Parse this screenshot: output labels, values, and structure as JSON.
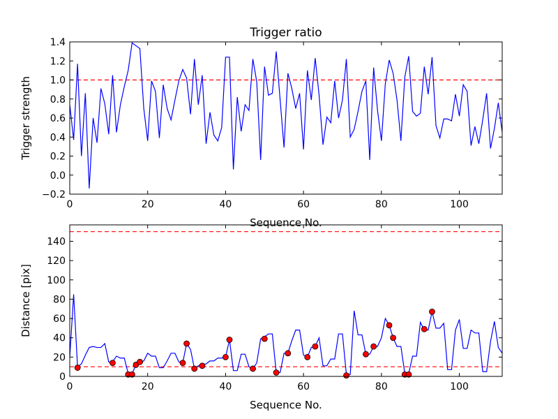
{
  "chart_data": [
    {
      "type": "line",
      "title": "Trigger ratio",
      "xlabel": "Sequence No.",
      "ylabel": "Trigger strength",
      "xlim": [
        0,
        111
      ],
      "ylim": [
        -0.2,
        1.4
      ],
      "xticks": [
        0,
        20,
        40,
        60,
        80,
        100
      ],
      "yticks": [
        -0.2,
        0.0,
        0.2,
        0.4,
        0.6,
        0.8,
        1.0,
        1.2,
        1.4
      ],
      "xtick_labels": [
        "0",
        "20",
        "40",
        "60",
        "80",
        "100"
      ],
      "ytick_labels": [
        "−0.2",
        "0.0",
        "0.2",
        "0.4",
        "0.6",
        "0.8",
        "1.0",
        "1.2",
        "1.4"
      ],
      "grid": false,
      "series": [
        {
          "color": "#0000ff",
          "style": "solid",
          "values": [
            0.74,
            0.37,
            1.17,
            0.2,
            0.86,
            -0.14,
            0.6,
            0.34,
            0.91,
            0.75,
            0.43,
            1.05,
            0.45,
            0.74,
            0.93,
            1.1,
            1.39,
            1.36,
            1.33,
            0.7,
            0.36,
            0.99,
            0.88,
            0.39,
            0.95,
            0.7,
            0.58,
            0.79,
            0.99,
            1.11,
            1.02,
            0.64,
            1.22,
            0.74,
            1.05,
            0.33,
            0.66,
            0.42,
            0.36,
            0.5,
            1.24,
            1.24,
            0.06,
            0.82,
            0.46,
            0.74,
            0.68,
            1.22,
            0.98,
            0.16,
            1.14,
            0.84,
            0.86,
            1.3,
            0.79,
            0.29,
            1.07,
            0.91,
            0.7,
            0.86,
            0.27,
            1.1,
            0.79,
            1.23,
            0.84,
            0.32,
            0.61,
            0.55,
            0.99,
            0.6,
            0.79,
            1.22,
            0.4,
            0.48,
            0.67,
            0.88,
            0.99,
            0.16,
            1.13,
            0.68,
            0.36,
            0.96,
            1.21,
            1.07,
            0.79,
            0.36,
            1.03,
            1.25,
            0.67,
            0.62,
            0.65,
            1.14,
            0.85,
            1.24,
            0.52,
            0.39,
            0.59,
            0.59,
            0.57,
            0.85,
            0.62,
            0.95,
            0.88,
            0.31,
            0.51,
            0.33,
            0.58,
            0.86,
            0.28,
            0.49,
            0.76,
            0.45
          ]
        }
      ],
      "hlines": [
        {
          "y": 1.0,
          "color": "#ff0000",
          "style": "dashed"
        }
      ]
    },
    {
      "type": "line",
      "title": "",
      "xlabel": "Sequence No.",
      "ylabel": "Distance [pix]",
      "xlim": [
        0,
        111
      ],
      "ylim": [
        0,
        157
      ],
      "xticks": [
        0,
        20,
        40,
        60,
        80,
        100
      ],
      "yticks": [
        0,
        20,
        40,
        60,
        80,
        100,
        120,
        140
      ],
      "xtick_labels": [
        "0",
        "20",
        "40",
        "60",
        "80",
        "100"
      ],
      "ytick_labels": [
        "0",
        "20",
        "40",
        "60",
        "80",
        "100",
        "120",
        "140"
      ],
      "grid": false,
      "series": [
        {
          "color": "#0000ff",
          "style": "solid",
          "values": [
            20,
            85,
            10,
            13,
            22,
            30,
            31,
            30,
            30,
            34,
            15,
            15,
            21,
            19,
            19,
            3,
            3,
            12,
            15,
            16,
            24,
            21,
            21,
            9,
            9,
            16,
            24,
            24,
            15,
            14,
            34,
            28,
            8,
            11,
            12,
            13,
            16,
            16,
            19,
            19,
            20,
            38,
            6,
            6,
            23,
            23,
            10,
            8,
            14,
            39,
            41,
            44,
            44,
            4,
            4,
            24,
            24,
            37,
            48,
            48,
            22,
            20,
            30,
            31,
            40,
            11,
            11,
            18,
            18,
            44,
            44,
            2,
            2,
            68,
            43,
            43,
            23,
            23,
            31,
            31,
            40,
            60,
            53,
            40,
            31,
            31,
            3,
            3,
            21,
            21,
            56,
            48,
            48,
            67,
            50,
            50,
            55,
            7,
            7,
            48,
            59,
            29,
            29,
            48,
            45,
            45,
            5,
            5,
            36,
            57,
            30,
            24
          ]
        },
        {
          "color": "#ff0000",
          "style": "markers",
          "points": [
            [
              2,
              9
            ],
            [
              11,
              14
            ],
            [
              15,
              2
            ],
            [
              16,
              2
            ],
            [
              17,
              12
            ],
            [
              18,
              15
            ],
            [
              29,
              14
            ],
            [
              30,
              34
            ],
            [
              32,
              8
            ],
            [
              34,
              11
            ],
            [
              40,
              20
            ],
            [
              41,
              38
            ],
            [
              47,
              8
            ],
            [
              50,
              39
            ],
            [
              53,
              4
            ],
            [
              56,
              24
            ],
            [
              61,
              20
            ],
            [
              63,
              31
            ],
            [
              71,
              1
            ],
            [
              76,
              23
            ],
            [
              78,
              31
            ],
            [
              82,
              53
            ],
            [
              83,
              40
            ],
            [
              86,
              2
            ],
            [
              87,
              2
            ],
            [
              91,
              49
            ],
            [
              93,
              67
            ]
          ]
        }
      ],
      "hlines": [
        {
          "y": 150,
          "color": "#ff0000",
          "style": "dashed"
        },
        {
          "y": 10,
          "color": "#ff0000",
          "style": "dashed"
        }
      ]
    }
  ]
}
